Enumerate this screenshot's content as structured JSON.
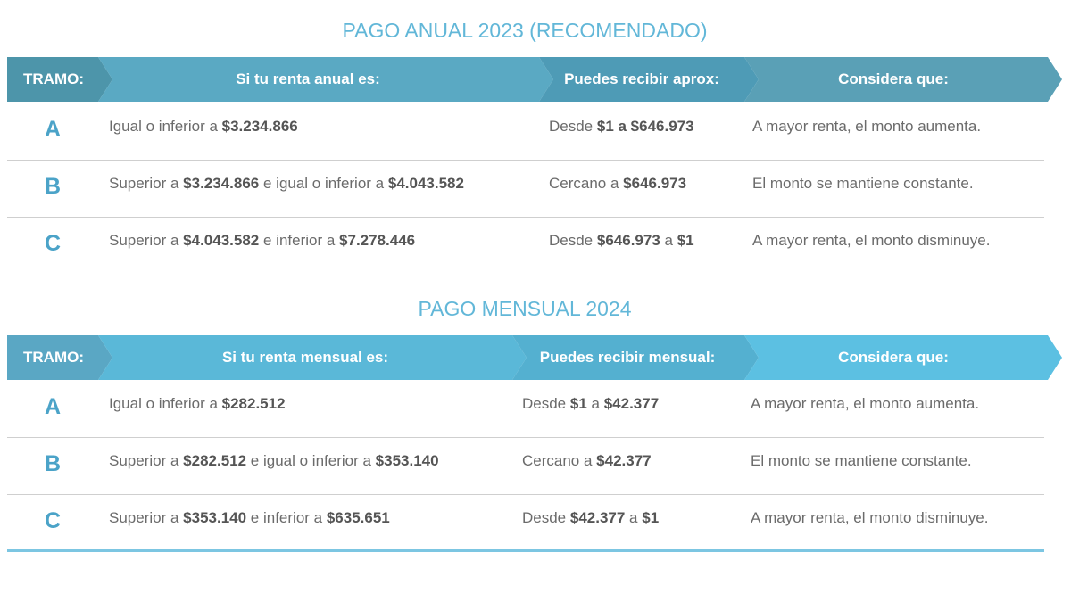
{
  "annual": {
    "title": "PAGO ANUAL 2023 (RECOMENDADO)",
    "headers": [
      "TRAMO:",
      "Si tu renta anual es:",
      "Puedes recibir aprox:",
      "Considera que:"
    ],
    "colors": {
      "title": "#62b7d8",
      "seg1": "#4d95aa",
      "seg2": "#5aa9c3",
      "seg3": "#4e9bb6",
      "seg4": "#5aa0b6"
    },
    "rows": [
      {
        "tramo": "A",
        "renta": [
          {
            "t": "Igual o inferior a ",
            "b": false
          },
          {
            "t": "$3.234.866",
            "b": true
          }
        ],
        "monto": [
          {
            "t": "Desde ",
            "b": false
          },
          {
            "t": "$1 a $646.973",
            "b": true
          }
        ],
        "considera": "A mayor renta, el monto aumenta."
      },
      {
        "tramo": "B",
        "renta": [
          {
            "t": "Superior a ",
            "b": false
          },
          {
            "t": "$3.234.866",
            "b": true
          },
          {
            "t": " e igual o inferior a ",
            "b": false
          },
          {
            "t": "$4.043.582",
            "b": true
          }
        ],
        "monto": [
          {
            "t": "Cercano a ",
            "b": false
          },
          {
            "t": "$646.973",
            "b": true
          }
        ],
        "considera": "El monto se mantiene constante."
      },
      {
        "tramo": "C",
        "renta": [
          {
            "t": "Superior a ",
            "b": false
          },
          {
            "t": "$4.043.582",
            "b": true
          },
          {
            "t": " e inferior a ",
            "b": false
          },
          {
            "t": "$7.278.446",
            "b": true
          }
        ],
        "monto": [
          {
            "t": "Desde ",
            "b": false
          },
          {
            "t": "$646.973",
            "b": true
          },
          {
            "t": " a ",
            "b": false
          },
          {
            "t": "$1",
            "b": true
          }
        ],
        "considera": "A mayor renta, el monto disminuye."
      }
    ]
  },
  "monthly": {
    "title": "PAGO MENSUAL 2024",
    "headers": [
      "TRAMO:",
      "Si tu renta mensual es:",
      "Puedes recibir mensual:",
      "Considera que:"
    ],
    "colors": {
      "title": "#62b7d8",
      "seg1": "#5aa7c4",
      "seg2": "#5ab8d8",
      "seg3": "#54b0d0",
      "seg4": "#5cc0e2"
    },
    "rows": [
      {
        "tramo": "A",
        "renta": [
          {
            "t": "Igual o inferior a ",
            "b": false
          },
          {
            "t": "$282.512",
            "b": true
          }
        ],
        "monto": [
          {
            "t": "Desde ",
            "b": false
          },
          {
            "t": "$1",
            "b": true
          },
          {
            "t": " a ",
            "b": false
          },
          {
            "t": "$42.377",
            "b": true
          }
        ],
        "considera": "A mayor renta, el monto aumenta."
      },
      {
        "tramo": "B",
        "renta": [
          {
            "t": "Superior a ",
            "b": false
          },
          {
            "t": "$282.512",
            "b": true
          },
          {
            "t": " e igual o inferior a ",
            "b": false
          },
          {
            "t": "$353.140",
            "b": true
          }
        ],
        "monto": [
          {
            "t": "Cercano a ",
            "b": false
          },
          {
            "t": "$42.377",
            "b": true
          }
        ],
        "considera": "El monto se mantiene constante."
      },
      {
        "tramo": "C",
        "renta": [
          {
            "t": "Superior a ",
            "b": false
          },
          {
            "t": "$353.140",
            "b": true
          },
          {
            "t": " e inferior a ",
            "b": false
          },
          {
            "t": "$635.651",
            "b": true
          }
        ],
        "monto": [
          {
            "t": "Desde ",
            "b": false
          },
          {
            "t": "$42.377",
            "b": true
          },
          {
            "t": " a ",
            "b": false
          },
          {
            "t": "$1",
            "b": true
          }
        ],
        "considera": "A mayor renta, el monto disminuye."
      }
    ]
  }
}
